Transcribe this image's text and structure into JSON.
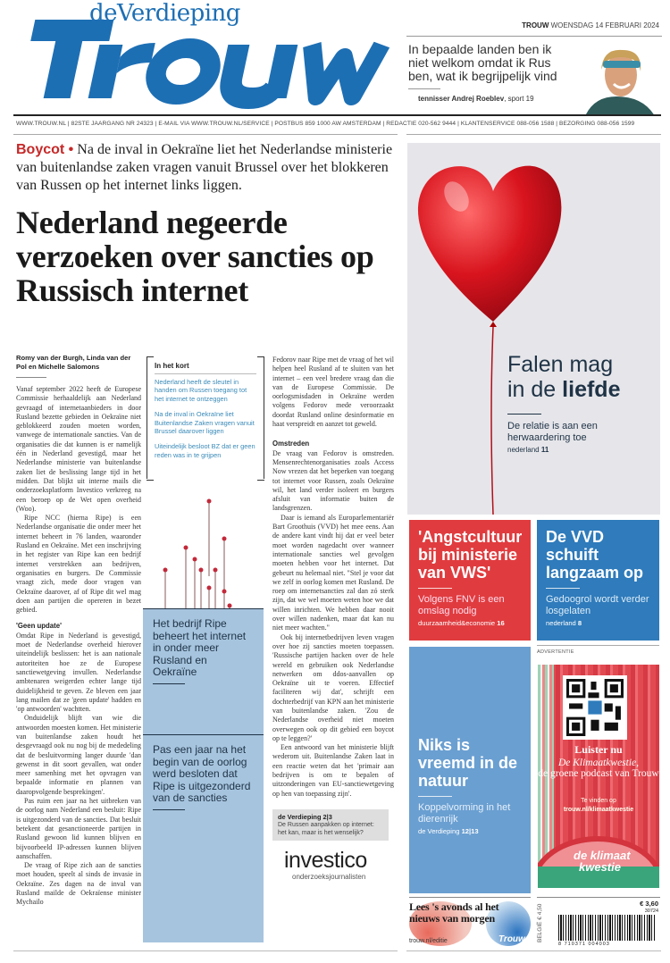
{
  "masthead": {
    "logo_sub": "deVerdieping",
    "logo": "Trouw",
    "date_brand": "TROUW",
    "date": "WOENSDAG 14 FEBRUARI 2024",
    "quote": "In bepaalde landen ben ik niet welkom omdat ik Rus ben, wat ik begrijpelijk vind",
    "quote_by": "tennisser Andrej Roeblev",
    "quote_ref": ", sport 19",
    "info": "WWW.TROUW.NL | 82STE JAARGANG NR 24323 | E-MAIL VIA WWW.TROUW.NL/SERVICE | POSTBUS 859 1000 AW AMSTERDAM | REDACTIE 020-562 9444 | KLANTENSERVICE 088-056 1588 | BEZORGING 088-056 1599"
  },
  "lead": {
    "kicker_label": "Boycot •",
    "kicker": " Na de inval in Oekraïne liet het Nederlandse ministerie van buitenlandse zaken vragen vanuit Brussel over het blokkeren van Russen op het internet links liggen.",
    "headline": "Nederland negeerde verzoeken over sancties op Russisch internet",
    "byline": "Romy van der Burgh, Linda van der Pol en Michelle Salomons",
    "col1": [
      "Vanaf september 2022 heeft de Europese Commissie herhaaldelijk aan Nederland gevraagd of internetaanbieders in door Rusland bezette gebieden in Oekraïne niet geblokkeerd zouden moeten worden, vanwege de internationale sancties. Van de organisaties die dat kunnen is er namelijk één in Nederland gevestigd, maar het Nederlandse ministerie van buitenlandse zaken liet de beslissing lange tijd in het midden. Dat blijkt uit interne mails die onderzoeksplatform Investico verkreeg na een beroep op de Wet open overheid (Woo).",
      "Ripe NCC (hierna Ripe) is een Nederlandse organisatie die onder meer het internet beheert in 76 landen, waaronder Rusland en Oekraïne. Met een inschrijving in het register van Ripe kan een bedrijf internet verstrekken aan bedrijven, organisaties en burgers. De Commissie vraagt zich, mede door vragen van Oekraïne daarover, af of Ripe dit wel mag doen aan partijen die opereren in bezet gebied."
    ],
    "sub1": "'Geen update'",
    "col1b": [
      "Omdat Ripe in Nederland is gevestigd, moet de Nederlandse overheid hierover uiteindelijk beslissen: het is aan nationale autoriteiten hoe ze de Europese sanctiewetgeving invullen. Nederlandse ambtenaren weigerden echter lange tijd duidelijkheid te geven. Ze bleven een jaar lang mailen dat ze 'geen update' hadden en 'op antwoorden' wachtten.",
      "Onduidelijk blijft van wie die antwoorden moesten komen. Het ministerie van buitenlandse zaken houdt het desgevraagd ook nu nog bij de mededeling dat de besluitvorming langer duurde 'dan gewenst in dit soort gevallen, wat onder meer samenhing met het opvragen van bepaalde informatie en plannen van daaropvolgende besprekingen'.",
      "Pas ruim een jaar na het uitbreken van de oorlog nam Nederland een besluit: Ripe is uitgezonderd van de sancties. Dat besluit betekent dat gesanctioneerde partijen in Rusland gewoon lid kunnen blijven en bijvoorbeeld IP-adressen kunnen blijven aanschaffen.",
      "De vraag of Ripe zich aan de sancties moet houden, speelt al sinds de invasie in Oekraïne. Zes dagen na de inval van Rusland mailde de Oekraïense minister Mychailo"
    ],
    "col3": [
      "Fedorov naar Ripe met de vraag of het wil helpen heel Rusland af te sluiten van het internet – een veel bredere vraag dan die van de Europese Commissie. De oorlogsmisdaden in Oekraïne werden volgens Fedorov mede veroorzaakt doordat Rusland online desinformatie en haat verspreidt en aanzet tot geweld."
    ],
    "sub2": "Omstreden",
    "col3b": [
      "De vraag van Fedorov is omstreden. Mensenrechtenorganisaties zoals Access Now vrezen dat het beperken van toegang tot internet voor Russen, zoals Oekraïne wil, het land verder isoleert en burgers afsluit van informatie buiten de landsgrenzen.",
      "Daar is iemand als Europarlementariër Bart Groothuis (VVD) het mee eens. Aan de andere kant vindt hij dat er veel beter moet worden nagedacht over wanneer internationale sancties wel gevolgen moeten hebben voor het internet. Dat gebeurt nu helemaal niet. \"Stel je voor dat we zelf in oorlog komen met Rusland. De roep om internetsancties zal dan zó sterk zijn, dat we wel moeten weten hoe we dat willen inrichten. We hebben daar nooit over willen nadenken, maar dat kan nu niet meer wachten.\"",
      "Ook bij internetbedrijven leven vragen over hoe zij sancties moeten toepassen. 'Russische partijen hacken over de hele wereld en gebruiken ook Nederlandse netwerken om ddos-aanvallen op Oekraïne uit te voeren. Effectief faciliteren wij dat', schrijft een dochterbedrijf van KPN aan het ministerie van buitenlandse zaken. 'Zou de Nederlandse overheid niet moeten overwegen ook op dit gebied een boycot op te leggen?'",
      "Een antwoord van het ministerie blijft wederom uit. Buitenlandse Zaken laat in een reactie weten dat het 'primair aan bedrijven is om te bepalen of uitzonderingen van EU-sanctiewetgeving op hen van toepassing zijn'."
    ],
    "kort_title": "In het kort",
    "kort": [
      "Nederland heeft de sleutel in handen om Russen toegang tot het internet te ontzeggen",
      "Na de inval in Oekraïne liet Buitenlandse Zaken vragen vanuit Brussel daarover liggen",
      "Uiteindelijk besloot BZ dat er geen reden was in te grijpen"
    ],
    "box1": "Het bedrijf Ripe beheert het internet in onder meer Rusland en Oekraïne",
    "box2": "Pas een jaar na het begin van de oorlog werd besloten dat Ripe is uitgezonderd van de sancties",
    "verdieping_title": "de Verdieping 2|3",
    "verdieping_text": "De Russen aanpakken op internet: het kan, maar is het wenselijk?",
    "investico": "investico",
    "investico_sub": "onderzoeksjournalisten"
  },
  "hero": {
    "title_1": "Falen mag",
    "title_2": "in de ",
    "title_bold": "liefde",
    "sub": "De relatie is aan een herwaardering toe",
    "ref": "nederland",
    "ref_page": "11"
  },
  "tiles": [
    {
      "title": "'Angstcultuur bij ministerie van VWS'",
      "sub": "Volgens FNV is een omslag nodig",
      "ref": "duurzaamheid&economie",
      "page": "16",
      "color": "#e03c3f"
    },
    {
      "title": "De VVD schuift langzaam op",
      "sub": "Gedoogrol wordt verder losgelaten",
      "ref": "nederland",
      "page": "8",
      "color": "#2f7bbb"
    },
    {
      "title": "Niks is vreemd in de natuur",
      "sub": "Koppelvorming in het dierenrijk",
      "ref": "de Verdieping",
      "page": "12|13",
      "color": "#6a9fd1"
    }
  ],
  "ad": {
    "label": "ADVERTENTIE",
    "l1": "Luister nu",
    "l2a": "De Klimaatkwestie,",
    "l2b": "de groene podcast van Trouw",
    "l3a": "Te vinden op",
    "l3b": "trouw.nl/klimaatkwestie",
    "brand_1": "de klimaat",
    "brand_2": "kwestie"
  },
  "promo": {
    "text": "Lees 's avonds al het nieuws van morgen",
    "url": "trouw.nl/editie",
    "brand": "Trouw"
  },
  "barcode": {
    "belgie": "BELGIË € 4,50",
    "price": "€ 3,60",
    "code": "30724",
    "number": "8  710371  004003"
  }
}
